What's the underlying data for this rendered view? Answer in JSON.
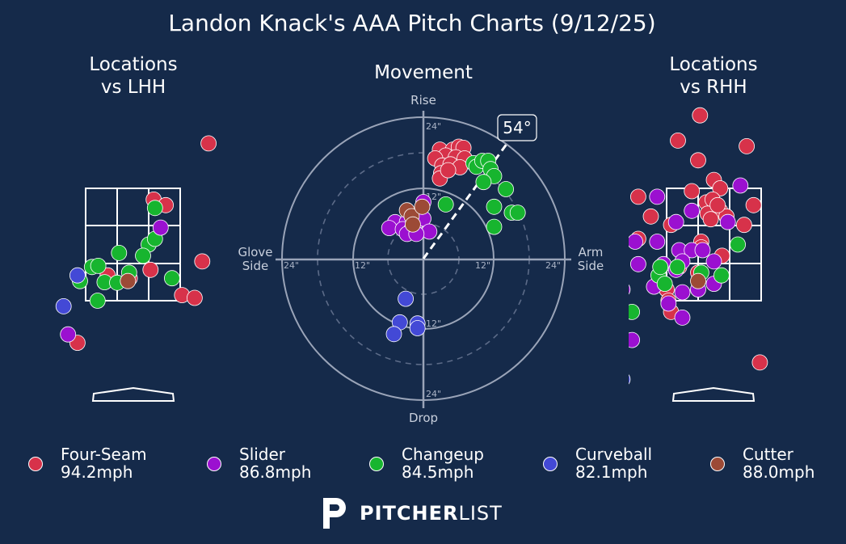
{
  "title": "Landon Knack's AAA Pitch Charts (9/12/25)",
  "panels": {
    "lhh_title_1": "Locations",
    "lhh_title_2": "vs LHH",
    "movement_title": "Movement",
    "rhh_title_1": "Locations",
    "rhh_title_2": "vs RHH"
  },
  "movement_axes": {
    "top": "Rise",
    "bottom": "Drop",
    "left_1": "Glove",
    "left_2": "Side",
    "right_1": "Arm",
    "right_2": "Side",
    "rings": [
      "12\"",
      "24\""
    ],
    "arm_angle_label": "54°"
  },
  "legend": [
    {
      "name": "Four-Seam",
      "speed": "94.2mph",
      "color": "#d7324a"
    },
    {
      "name": "Slider",
      "speed": "86.8mph",
      "color": "#9b10d0"
    },
    {
      "name": "Changeup",
      "speed": "84.5mph",
      "color": "#17b52f"
    },
    {
      "name": "Curveball",
      "speed": "82.1mph",
      "color": "#4349d6"
    },
    {
      "name": "Cutter",
      "speed": "88.0mph",
      "color": "#9c4a36"
    }
  ],
  "brand": {
    "bold": "PITCHER",
    "light": "LIST"
  },
  "chart_data": [
    {
      "type": "scatter",
      "title": "Locations vs LHH",
      "x_units": "feet from plate center (catcher view)",
      "y_units": "feet above ground",
      "xlim": [
        -2.3,
        2.3
      ],
      "ylim": [
        -0.5,
        5.7
      ],
      "strike_zone": {
        "x": [
          -0.75,
          0.75
        ],
        "y": [
          1.5,
          3.5
        ]
      },
      "points": [
        {
          "pitch": "Four-Seam",
          "x": 1.2,
          "y": 4.3
        },
        {
          "pitch": "Four-Seam",
          "x": 0.33,
          "y": 3.3
        },
        {
          "pitch": "Four-Seam",
          "x": 0.52,
          "y": 3.2
        },
        {
          "pitch": "Four-Seam",
          "x": 1.1,
          "y": 2.2
        },
        {
          "pitch": "Four-Seam",
          "x": -0.4,
          "y": 1.95
        },
        {
          "pitch": "Four-Seam",
          "x": -0.05,
          "y": 1.9
        },
        {
          "pitch": "Four-Seam",
          "x": 0.28,
          "y": 2.05
        },
        {
          "pitch": "Four-Seam",
          "x": 0.78,
          "y": 1.6
        },
        {
          "pitch": "Four-Seam",
          "x": 0.98,
          "y": 1.55
        },
        {
          "pitch": "Four-Seam",
          "x": -0.88,
          "y": 0.75
        },
        {
          "pitch": "Changeup",
          "x": 0.35,
          "y": 3.15
        },
        {
          "pitch": "Changeup",
          "x": 0.25,
          "y": 2.5
        },
        {
          "pitch": "Changeup",
          "x": 0.35,
          "y": 2.6
        },
        {
          "pitch": "Changeup",
          "x": -0.22,
          "y": 2.35
        },
        {
          "pitch": "Changeup",
          "x": 0.16,
          "y": 2.3
        },
        {
          "pitch": "Changeup",
          "x": -0.65,
          "y": 2.1
        },
        {
          "pitch": "Changeup",
          "x": -0.55,
          "y": 2.12
        },
        {
          "pitch": "Changeup",
          "x": -0.84,
          "y": 1.85
        },
        {
          "pitch": "Changeup",
          "x": -0.45,
          "y": 1.83
        },
        {
          "pitch": "Changeup",
          "x": -0.25,
          "y": 1.82
        },
        {
          "pitch": "Changeup",
          "x": -0.06,
          "y": 2.0
        },
        {
          "pitch": "Changeup",
          "x": 0.62,
          "y": 1.9
        },
        {
          "pitch": "Changeup",
          "x": -0.56,
          "y": 1.5
        },
        {
          "pitch": "Slider",
          "x": 0.44,
          "y": 2.8
        },
        {
          "pitch": "Slider",
          "x": -1.03,
          "y": 0.9
        },
        {
          "pitch": "Curveball",
          "x": -0.88,
          "y": 1.95
        },
        {
          "pitch": "Curveball",
          "x": -1.1,
          "y": 1.4
        },
        {
          "pitch": "Cutter",
          "x": -0.08,
          "y": 1.85
        }
      ]
    },
    {
      "type": "polar_scatter",
      "title": "Movement",
      "x_units": "inches of horizontal break (+ = arm side)",
      "y_units": "inches of induced vertical break (+ = rise)",
      "rlim": [
        0,
        24
      ],
      "arm_angle_deg": 54,
      "points": [
        {
          "pitch": "Four-Seam",
          "x": 2.8,
          "y": 18.5
        },
        {
          "pitch": "Four-Seam",
          "x": 5.0,
          "y": 18.5
        },
        {
          "pitch": "Four-Seam",
          "x": 6.0,
          "y": 19.0
        },
        {
          "pitch": "Four-Seam",
          "x": 6.8,
          "y": 18.8
        },
        {
          "pitch": "Four-Seam",
          "x": 3.8,
          "y": 17.5
        },
        {
          "pitch": "Four-Seam",
          "x": 5.5,
          "y": 17.2
        },
        {
          "pitch": "Four-Seam",
          "x": 7.0,
          "y": 17.0
        },
        {
          "pitch": "Four-Seam",
          "x": 2.0,
          "y": 17.0
        },
        {
          "pitch": "Four-Seam",
          "x": 3.2,
          "y": 15.8
        },
        {
          "pitch": "Four-Seam",
          "x": 4.6,
          "y": 16.0
        },
        {
          "pitch": "Four-Seam",
          "x": 6.2,
          "y": 15.5
        },
        {
          "pitch": "Four-Seam",
          "x": 3.0,
          "y": 14.5
        },
        {
          "pitch": "Four-Seam",
          "x": 2.8,
          "y": 13.6
        },
        {
          "pitch": "Four-Seam",
          "x": 4.2,
          "y": 15.0
        },
        {
          "pitch": "Changeup",
          "x": 8.5,
          "y": 16.2
        },
        {
          "pitch": "Changeup",
          "x": 9.0,
          "y": 15.6
        },
        {
          "pitch": "Changeup",
          "x": 10.0,
          "y": 16.6
        },
        {
          "pitch": "Changeup",
          "x": 11.0,
          "y": 16.6
        },
        {
          "pitch": "Changeup",
          "x": 11.4,
          "y": 15.2
        },
        {
          "pitch": "Changeup",
          "x": 12.0,
          "y": 14.0
        },
        {
          "pitch": "Changeup",
          "x": 10.2,
          "y": 13.0
        },
        {
          "pitch": "Changeup",
          "x": 14.0,
          "y": 11.8
        },
        {
          "pitch": "Changeup",
          "x": 3.8,
          "y": 9.2
        },
        {
          "pitch": "Changeup",
          "x": 12.0,
          "y": 8.8
        },
        {
          "pitch": "Changeup",
          "x": 15.0,
          "y": 7.8
        },
        {
          "pitch": "Changeup",
          "x": 16.0,
          "y": 7.8
        },
        {
          "pitch": "Changeup",
          "x": 12.0,
          "y": 5.4
        },
        {
          "pitch": "Slider",
          "x": 0.0,
          "y": 9.6
        },
        {
          "pitch": "Slider",
          "x": -4.8,
          "y": 6.2
        },
        {
          "pitch": "Slider",
          "x": -2.8,
          "y": 6.2
        },
        {
          "pitch": "Slider",
          "x": -1.2,
          "y": 6.2
        },
        {
          "pitch": "Slider",
          "x": 0.0,
          "y": 6.8
        },
        {
          "pitch": "Slider",
          "x": -5.8,
          "y": 5.2
        },
        {
          "pitch": "Slider",
          "x": -3.5,
          "y": 5.0
        },
        {
          "pitch": "Slider",
          "x": -2.0,
          "y": 5.0
        },
        {
          "pitch": "Slider",
          "x": 1.0,
          "y": 4.6
        },
        {
          "pitch": "Slider",
          "x": -2.8,
          "y": 4.2
        },
        {
          "pitch": "Slider",
          "x": -1.2,
          "y": 4.2
        },
        {
          "pitch": "Cutter",
          "x": -2.8,
          "y": 8.2
        },
        {
          "pitch": "Cutter",
          "x": -2.0,
          "y": 7.2
        },
        {
          "pitch": "Cutter",
          "x": -0.2,
          "y": 8.8
        },
        {
          "pitch": "Cutter",
          "x": -1.8,
          "y": 5.8
        },
        {
          "pitch": "Curveball",
          "x": -3.0,
          "y": -6.8
        },
        {
          "pitch": "Curveball",
          "x": -4.0,
          "y": -10.8
        },
        {
          "pitch": "Curveball",
          "x": -1.0,
          "y": -11.0
        },
        {
          "pitch": "Curveball",
          "x": -5.0,
          "y": -12.8
        },
        {
          "pitch": "Curveball",
          "x": -1.0,
          "y": -11.8
        }
      ]
    },
    {
      "type": "scatter",
      "title": "Locations vs RHH",
      "x_units": "feet from plate center (catcher view)",
      "y_units": "feet above ground",
      "xlim": [
        -2.3,
        2.3
      ],
      "ylim": [
        -0.5,
        5.7
      ],
      "strike_zone": {
        "x": [
          -0.75,
          0.75
        ],
        "y": [
          1.5,
          3.5
        ]
      },
      "points": [
        {
          "pitch": "Four-Seam",
          "x": -0.22,
          "y": 4.8
        },
        {
          "pitch": "Four-Seam",
          "x": -0.57,
          "y": 4.35
        },
        {
          "pitch": "Four-Seam",
          "x": 0.52,
          "y": 4.25
        },
        {
          "pitch": "Four-Seam",
          "x": -0.25,
          "y": 4.0
        },
        {
          "pitch": "Four-Seam",
          "x": 0.0,
          "y": 3.65
        },
        {
          "pitch": "Four-Seam",
          "x": -0.35,
          "y": 3.45
        },
        {
          "pitch": "Four-Seam",
          "x": 0.1,
          "y": 3.5
        },
        {
          "pitch": "Four-Seam",
          "x": -1.2,
          "y": 3.35
        },
        {
          "pitch": "Four-Seam",
          "x": -0.12,
          "y": 3.25
        },
        {
          "pitch": "Four-Seam",
          "x": -0.02,
          "y": 3.3
        },
        {
          "pitch": "Four-Seam",
          "x": 0.1,
          "y": 3.1
        },
        {
          "pitch": "Four-Seam",
          "x": -0.1,
          "y": 3.05
        },
        {
          "pitch": "Four-Seam",
          "x": -0.05,
          "y": 2.95
        },
        {
          "pitch": "Four-Seam",
          "x": 0.2,
          "y": 3.0
        },
        {
          "pitch": "Four-Seam",
          "x": 0.06,
          "y": 3.2
        },
        {
          "pitch": "Four-Seam",
          "x": 0.63,
          "y": 3.2
        },
        {
          "pitch": "Four-Seam",
          "x": -1.0,
          "y": 3.0
        },
        {
          "pitch": "Four-Seam",
          "x": -0.68,
          "y": 2.85
        },
        {
          "pitch": "Four-Seam",
          "x": 0.48,
          "y": 2.85
        },
        {
          "pitch": "Four-Seam",
          "x": -0.2,
          "y": 2.55
        },
        {
          "pitch": "Four-Seam",
          "x": -1.2,
          "y": 2.6
        },
        {
          "pitch": "Four-Seam",
          "x": -0.2,
          "y": 2.45
        },
        {
          "pitch": "Four-Seam",
          "x": 0.13,
          "y": 2.3
        },
        {
          "pitch": "Four-Seam",
          "x": -0.25,
          "y": 2.0
        },
        {
          "pitch": "Four-Seam",
          "x": -0.55,
          "y": 2.1
        },
        {
          "pitch": "Four-Seam",
          "x": -0.75,
          "y": 1.7
        },
        {
          "pitch": "Four-Seam",
          "x": -0.72,
          "y": 1.5
        },
        {
          "pitch": "Four-Seam",
          "x": -0.68,
          "y": 1.3
        },
        {
          "pitch": "Four-Seam",
          "x": 0.73,
          "y": 0.4
        },
        {
          "pitch": "Slider",
          "x": 0.42,
          "y": 3.55
        },
        {
          "pitch": "Slider",
          "x": -0.9,
          "y": 3.35
        },
        {
          "pitch": "Slider",
          "x": -0.35,
          "y": 3.1
        },
        {
          "pitch": "Slider",
          "x": 0.22,
          "y": 2.9
        },
        {
          "pitch": "Slider",
          "x": -0.6,
          "y": 2.9
        },
        {
          "pitch": "Slider",
          "x": -0.9,
          "y": 2.55
        },
        {
          "pitch": "Slider",
          "x": -1.25,
          "y": 2.55
        },
        {
          "pitch": "Slider",
          "x": -0.55,
          "y": 2.4
        },
        {
          "pitch": "Slider",
          "x": -0.35,
          "y": 2.4
        },
        {
          "pitch": "Slider",
          "x": -0.18,
          "y": 2.4
        },
        {
          "pitch": "Slider",
          "x": 0.0,
          "y": 2.2
        },
        {
          "pitch": "Slider",
          "x": -0.5,
          "y": 2.2
        },
        {
          "pitch": "Slider",
          "x": -0.8,
          "y": 2.15
        },
        {
          "pitch": "Slider",
          "x": -0.6,
          "y": 2.05
        },
        {
          "pitch": "Slider",
          "x": -1.2,
          "y": 2.15
        },
        {
          "pitch": "Slider",
          "x": -1.45,
          "y": 1.7
        },
        {
          "pitch": "Slider",
          "x": -0.95,
          "y": 1.75
        },
        {
          "pitch": "Slider",
          "x": -0.25,
          "y": 1.7
        },
        {
          "pitch": "Slider",
          "x": -0.5,
          "y": 1.65
        },
        {
          "pitch": "Slider",
          "x": 0.0,
          "y": 1.8
        },
        {
          "pitch": "Slider",
          "x": -0.72,
          "y": 1.45
        },
        {
          "pitch": "Slider",
          "x": -0.5,
          "y": 1.2
        },
        {
          "pitch": "Slider",
          "x": -1.3,
          "y": 0.8
        },
        {
          "pitch": "Changeup",
          "x": 0.38,
          "y": 2.5
        },
        {
          "pitch": "Changeup",
          "x": -0.88,
          "y": 1.95
        },
        {
          "pitch": "Changeup",
          "x": -0.85,
          "y": 2.1
        },
        {
          "pitch": "Changeup",
          "x": -0.58,
          "y": 2.1
        },
        {
          "pitch": "Changeup",
          "x": -0.78,
          "y": 1.8
        },
        {
          "pitch": "Changeup",
          "x": -0.2,
          "y": 2.0
        },
        {
          "pitch": "Changeup",
          "x": 0.12,
          "y": 1.95
        },
        {
          "pitch": "Changeup",
          "x": -1.3,
          "y": 1.3
        },
        {
          "pitch": "Curveball",
          "x": -1.45,
          "y": 0.1
        },
        {
          "pitch": "Cutter",
          "x": -0.25,
          "y": 1.85
        }
      ]
    }
  ]
}
